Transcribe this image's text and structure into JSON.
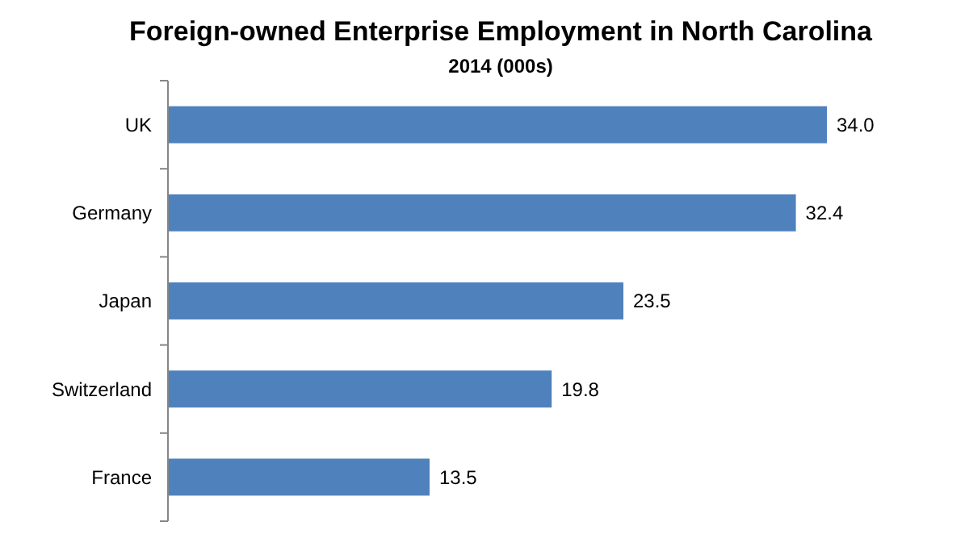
{
  "chart_data": {
    "type": "bar",
    "orientation": "horizontal",
    "title": "Foreign-owned Enterprise Employment in North Carolina",
    "subtitle": "2014 (000s)",
    "categories": [
      "UK",
      "Germany",
      "Japan",
      "Switzerland",
      "France"
    ],
    "values": [
      34.0,
      32.4,
      23.5,
      19.8,
      13.5
    ],
    "value_labels": [
      "34.0",
      "32.4",
      "23.5",
      "19.8",
      "13.5"
    ],
    "color": "#4f81bd"
  }
}
